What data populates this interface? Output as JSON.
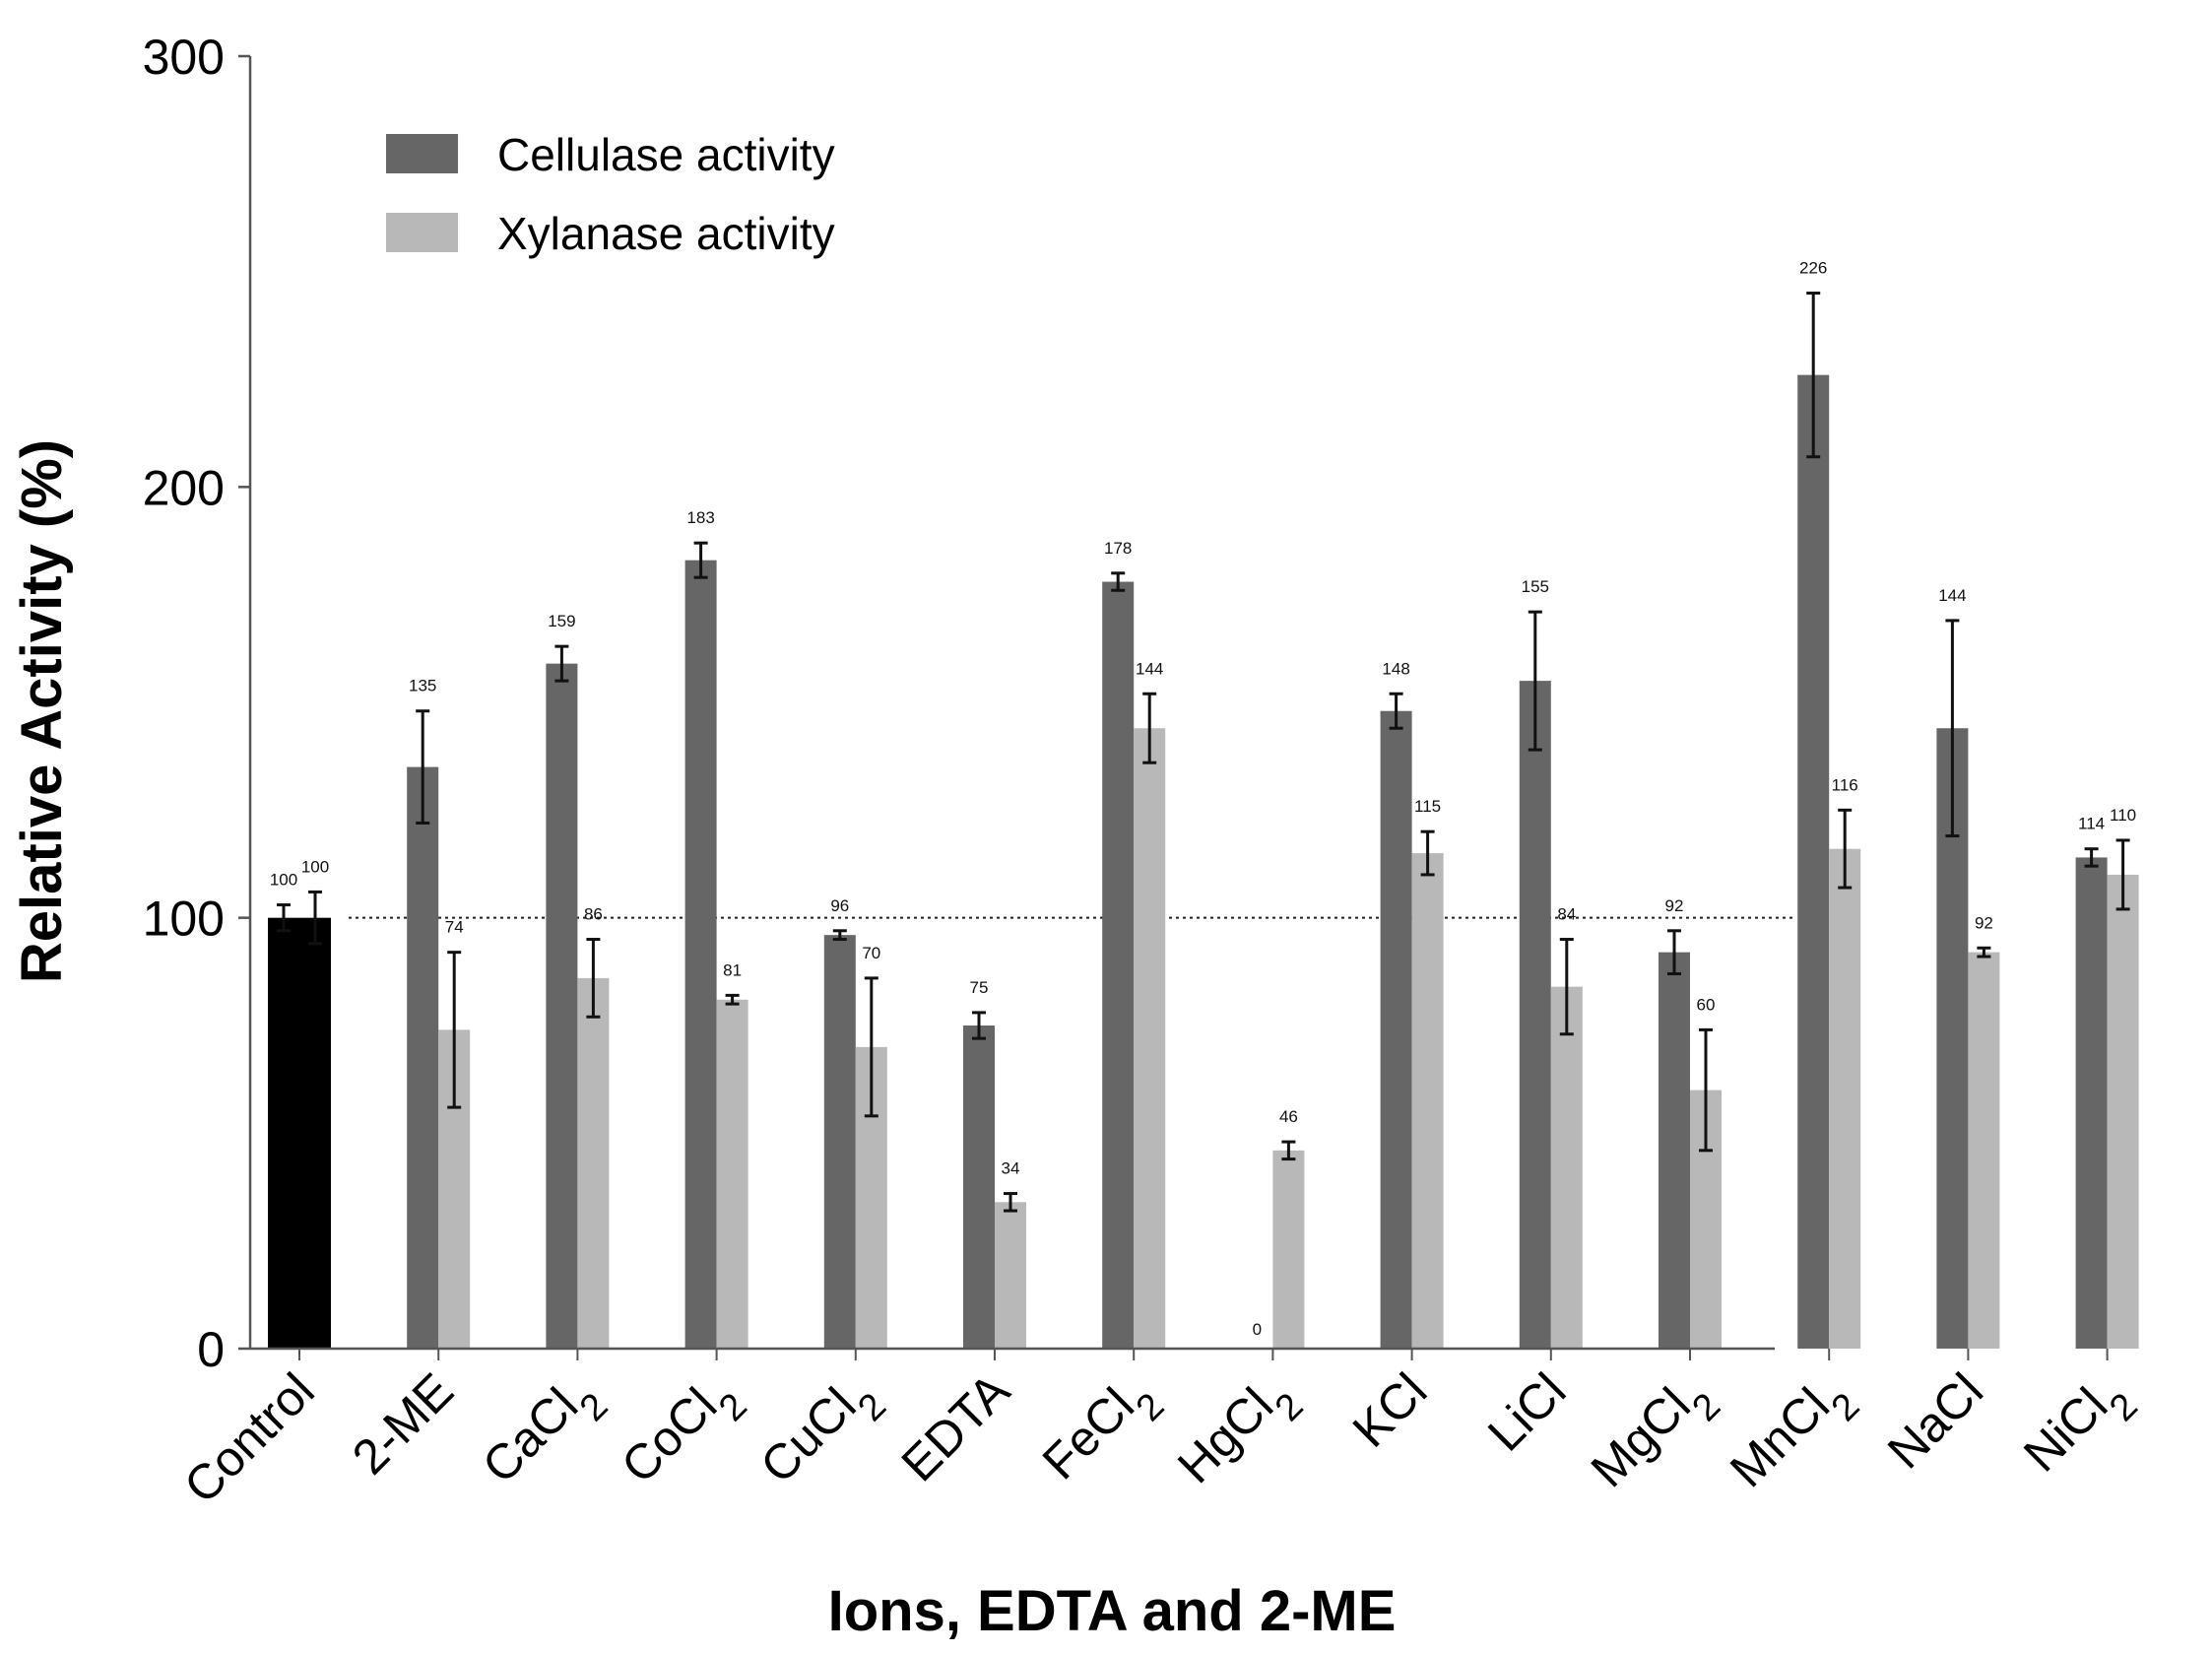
{
  "chart_data": {
    "type": "bar",
    "xlabel": "Ions, EDTA and 2-ME",
    "ylabel": "Relative Activity (%)",
    "ylim": [
      0,
      300
    ],
    "yticks": [
      0,
      100,
      200,
      300
    ],
    "reference_line": 100,
    "categories": [
      {
        "name": "Control",
        "main": "Control",
        "sub": ""
      },
      {
        "name": "2-ME",
        "main": "2-ME",
        "sub": ""
      },
      {
        "name": "CaCl2",
        "main": "CaCl",
        "sub": "2"
      },
      {
        "name": "CoCl2",
        "main": "CoCl",
        "sub": "2"
      },
      {
        "name": "CuCl2",
        "main": "CuCl",
        "sub": "2"
      },
      {
        "name": "EDTA",
        "main": "EDTA",
        "sub": ""
      },
      {
        "name": "FeCl2",
        "main": "FeCl",
        "sub": "2"
      },
      {
        "name": "HgCl2",
        "main": "HgCl",
        "sub": "2"
      },
      {
        "name": "KCl",
        "main": "KCl",
        "sub": ""
      },
      {
        "name": "LiCl",
        "main": "LiCl",
        "sub": ""
      },
      {
        "name": "MgCl2",
        "main": "MgCl",
        "sub": "2"
      },
      {
        "name": "MnCl2",
        "main": "MnCl",
        "sub": "2"
      },
      {
        "name": "NaCl",
        "main": "NaCl",
        "sub": ""
      },
      {
        "name": "NiCl2",
        "main": "NiCl",
        "sub": "2"
      }
    ],
    "series": [
      {
        "name": "Cellulase activity",
        "color": "#666666",
        "values": [
          100,
          135,
          159,
          183,
          96,
          75,
          178,
          0,
          148,
          155,
          92,
          226,
          144,
          114
        ],
        "errors": [
          3,
          13,
          4,
          4,
          1,
          3,
          2,
          0,
          4,
          16,
          5,
          19,
          25,
          2
        ],
        "labels": [
          "100",
          "135",
          "159",
          "183",
          "96",
          "75",
          "178",
          "0",
          "148",
          "155",
          "92",
          "226",
          "144",
          "114"
        ]
      },
      {
        "name": "Xylanase activity",
        "color": "#b8b8b8",
        "values": [
          100,
          74,
          86,
          81,
          70,
          34,
          144,
          46,
          115,
          84,
          60,
          116,
          92,
          110
        ],
        "errors": [
          6,
          18,
          9,
          1,
          16,
          2,
          8,
          2,
          5,
          11,
          14,
          9,
          1,
          8
        ],
        "labels": [
          "100",
          "74",
          "86",
          "81",
          "70",
          "34",
          "144",
          "46",
          "115",
          "84",
          "60",
          "116",
          "92",
          "110"
        ]
      }
    ],
    "control_color": "#000000",
    "legend_position": "top-left"
  }
}
